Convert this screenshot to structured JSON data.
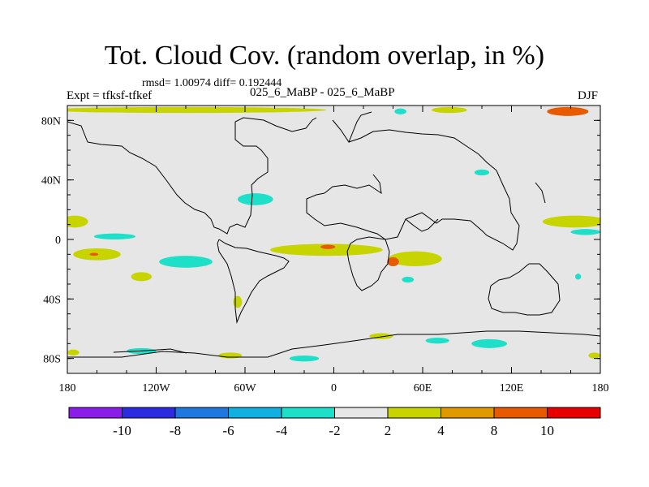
{
  "header": {
    "title": "Tot. Cloud Cov. (random overlap, in %)",
    "stats": "rmsd= 1.00974 diff= 0.192444",
    "experiment": "Expt = tfksf-tfkef",
    "subtitle": "025_6_MaBP - 025_6_MaBP",
    "season": "DJF"
  },
  "axes": {
    "x_ticks": [
      {
        "lon": -180,
        "label": "180"
      },
      {
        "lon": -120,
        "label": "120W"
      },
      {
        "lon": -60,
        "label": "60W"
      },
      {
        "lon": 0,
        "label": "0"
      },
      {
        "lon": 60,
        "label": "60E"
      },
      {
        "lon": 120,
        "label": "120E"
      },
      {
        "lon": 180,
        "label": "180"
      }
    ],
    "y_ticks": [
      {
        "lat": 80,
        "label": "80N"
      },
      {
        "lat": 40,
        "label": "40N"
      },
      {
        "lat": 0,
        "label": "0"
      },
      {
        "lat": -40,
        "label": "40S"
      },
      {
        "lat": -80,
        "label": "80S"
      }
    ],
    "lon_range": [
      -180,
      180
    ],
    "lat_range": [
      -90,
      90
    ]
  },
  "colors": {
    "background_field": "#e6e6e6",
    "coastline": "#000000"
  },
  "colorbar": {
    "bins": [
      {
        "color": "#8a1ee8"
      },
      {
        "color": "#2b2be0"
      },
      {
        "color": "#1f78e0"
      },
      {
        "color": "#12b0e0"
      },
      {
        "color": "#1ee0c8"
      },
      {
        "color": "#e6e6e6"
      },
      {
        "color": "#c8d400"
      },
      {
        "color": "#e09a00"
      },
      {
        "color": "#e85a00"
      },
      {
        "color": "#e80000"
      }
    ],
    "labels": [
      "-10",
      "-8",
      "-6",
      "-4",
      "-2",
      "2",
      "4",
      "8",
      "10"
    ]
  },
  "anomalies": [
    {
      "lon": -100,
      "lat": 87,
      "rx": 95,
      "ry": 2,
      "color": "#c8d400"
    },
    {
      "lon": 78,
      "lat": 87,
      "rx": 12,
      "ry": 2,
      "color": "#c8d400"
    },
    {
      "lon": 158,
      "lat": 86,
      "rx": 14,
      "ry": 3,
      "color": "#e85a00"
    },
    {
      "lon": 45,
      "lat": 86,
      "rx": 4,
      "ry": 2,
      "color": "#1ee0c8"
    },
    {
      "lon": -53,
      "lat": 27,
      "rx": 12,
      "ry": 4,
      "color": "#1ee0c8"
    },
    {
      "lon": 100,
      "lat": 45,
      "rx": 5,
      "ry": 2,
      "color": "#1ee0c8"
    },
    {
      "lon": -175,
      "lat": 12,
      "rx": 9,
      "ry": 4,
      "color": "#c8d400"
    },
    {
      "lon": 163,
      "lat": 12,
      "rx": 22,
      "ry": 4,
      "color": "#c8d400"
    },
    {
      "lon": 170,
      "lat": 5,
      "rx": 10,
      "ry": 2,
      "color": "#1ee0c8"
    },
    {
      "lon": -148,
      "lat": 2,
      "rx": 14,
      "ry": 2,
      "color": "#1ee0c8"
    },
    {
      "lon": -160,
      "lat": -10,
      "rx": 16,
      "ry": 4,
      "color": "#c8d400"
    },
    {
      "lon": -162,
      "lat": -10,
      "rx": 3,
      "ry": 1,
      "color": "#e85a00"
    },
    {
      "lon": -100,
      "lat": -15,
      "rx": 18,
      "ry": 4,
      "color": "#1ee0c8"
    },
    {
      "lon": -5,
      "lat": -7,
      "rx": 38,
      "ry": 4,
      "color": "#c8d400"
    },
    {
      "lon": -4,
      "lat": -5,
      "rx": 5,
      "ry": 1.5,
      "color": "#e85a00"
    },
    {
      "lon": 55,
      "lat": -13,
      "rx": 18,
      "ry": 5,
      "color": "#c8d400"
    },
    {
      "lon": 40,
      "lat": -15,
      "rx": 4,
      "ry": 3,
      "color": "#e85a00"
    },
    {
      "lon": -130,
      "lat": -25,
      "rx": 7,
      "ry": 3,
      "color": "#c8d400"
    },
    {
      "lon": 50,
      "lat": -27,
      "rx": 4,
      "ry": 2,
      "color": "#1ee0c8"
    },
    {
      "lon": -65,
      "lat": -42,
      "rx": 3,
      "ry": 4,
      "color": "#c8d400"
    },
    {
      "lon": 32,
      "lat": -65,
      "rx": 8,
      "ry": 2,
      "color": "#c8d400"
    },
    {
      "lon": 105,
      "lat": -70,
      "rx": 12,
      "ry": 3,
      "color": "#1ee0c8"
    },
    {
      "lon": 70,
      "lat": -68,
      "rx": 8,
      "ry": 2,
      "color": "#1ee0c8"
    },
    {
      "lon": -130,
      "lat": -75,
      "rx": 10,
      "ry": 2,
      "color": "#1ee0c8"
    },
    {
      "lon": -20,
      "lat": -80,
      "rx": 10,
      "ry": 2,
      "color": "#1ee0c8"
    },
    {
      "lon": -70,
      "lat": -78,
      "rx": 8,
      "ry": 2,
      "color": "#c8d400"
    },
    {
      "lon": 176,
      "lat": -78,
      "rx": 4,
      "ry": 2,
      "color": "#c8d400"
    },
    {
      "lon": -176,
      "lat": -76,
      "rx": 4,
      "ry": 2,
      "color": "#c8d400"
    },
    {
      "lon": 165,
      "lat": -25,
      "rx": 2,
      "ry": 2,
      "color": "#1ee0c8"
    }
  ]
}
